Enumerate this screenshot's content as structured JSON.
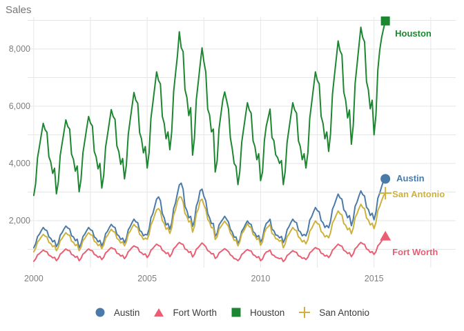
{
  "title": "Sales",
  "colors": {
    "grid": "#e6e6e6",
    "tick_label": "#7e7e7e",
    "title_text": "#757575",
    "legend_text": "#3b3b3b"
  },
  "chart_data": {
    "type": "line",
    "title": "Sales",
    "xlabel": "",
    "ylabel": "Sales",
    "x_unit": "month",
    "x_start": "2000-01",
    "x_end": "2015-07",
    "grid": true,
    "legend_position": "bottom",
    "x_ticks": [
      2000,
      2005,
      2010,
      2015
    ],
    "x_tick_labels": [
      "2000",
      "2005",
      "2010",
      "2015"
    ],
    "x_minor_ticks": [
      2002.5,
      2007.5,
      2012.5,
      2017.5
    ],
    "y_ticks": [
      2000,
      4000,
      6000,
      8000
    ],
    "y_tick_labels": [
      "2,000",
      "4,000",
      "6,000",
      "8,000"
    ],
    "y_minor_ticks": [
      1000,
      3000,
      5000,
      7000,
      9000
    ],
    "xlim": [
      1999.73,
      2018.6
    ],
    "ylim": [
      360,
      9230
    ],
    "series": [
      {
        "name": "Austin",
        "color": "#4a7aa8",
        "marker": "circle",
        "values": [
          1050,
          1190,
          1440,
          1530,
          1650,
          1760,
          1680,
          1650,
          1430,
          1380,
          1260,
          1310,
          1090,
          1220,
          1490,
          1580,
          1710,
          1810,
          1740,
          1710,
          1470,
          1430,
          1300,
          1350,
          1050,
          1190,
          1440,
          1530,
          1650,
          1760,
          1680,
          1650,
          1430,
          1380,
          1260,
          1310,
          1120,
          1260,
          1540,
          1630,
          1760,
          1870,
          1790,
          1760,
          1520,
          1470,
          1340,
          1390,
          1230,
          1380,
          1680,
          1790,
          1930,
          2050,
          1960,
          1930,
          1660,
          1610,
          1470,
          1520,
          1500,
          1700,
          2100,
          2250,
          2500,
          2750,
          2830,
          2700,
          2250,
          2100,
          1850,
          1900,
          1700,
          1920,
          2420,
          2620,
          2950,
          3250,
          3310,
          3100,
          2500,
          2350,
          2100,
          2150,
          1800,
          2000,
          2500,
          2700,
          3050,
          3100,
          2850,
          2700,
          2250,
          2100,
          1900,
          1900,
          1450,
          1560,
          1850,
          1950,
          2050,
          2150,
          2050,
          1950,
          1700,
          1600,
          1420,
          1430,
          1190,
          1340,
          1630,
          1730,
          1870,
          1990,
          1900,
          1870,
          1620,
          1560,
          1430,
          1480,
          1250,
          1380,
          1720,
          1900,
          1960,
          2050,
          1700,
          1650,
          1500,
          1480,
          1400,
          1450,
          1230,
          1380,
          1680,
          1790,
          1930,
          2050,
          1960,
          1930,
          1660,
          1610,
          1470,
          1520,
          1470,
          1660,
          2020,
          2140,
          2310,
          2460,
          2350,
          2310,
          2000,
          1930,
          1760,
          1830,
          1750,
          1980,
          2400,
          2550,
          2750,
          2930,
          2800,
          2750,
          2380,
          2300,
          2100,
          2180,
          1820,
          2050,
          2500,
          2650,
          2860,
          3040,
          2910,
          2860,
          2470,
          2390,
          2180,
          2260,
          2030,
          2290,
          2780,
          2960,
          3190,
          3390,
          3460
        ]
      },
      {
        "name": "Fort Worth",
        "color": "#e95e72",
        "marker": "triangle",
        "values": [
          580,
          660,
          800,
          850,
          910,
          970,
          930,
          910,
          790,
          760,
          700,
          720,
          600,
          680,
          830,
          880,
          950,
          1010,
          960,
          950,
          820,
          790,
          720,
          750,
          600,
          680,
          830,
          880,
          950,
          1010,
          960,
          950,
          820,
          790,
          720,
          750,
          640,
          720,
          870,
          930,
          1000,
          1060,
          1020,
          1000,
          860,
          840,
          760,
          790,
          670,
          760,
          920,
          980,
          1060,
          1120,
          1080,
          1060,
          910,
          880,
          810,
          840,
          710,
          800,
          970,
          1030,
          1110,
          1180,
          1130,
          1110,
          960,
          930,
          850,
          880,
          740,
          840,
          1020,
          1080,
          1170,
          1240,
          1190,
          1170,
          1010,
          980,
          890,
          920,
          730,
          820,
          1000,
          1060,
          1140,
          1220,
          1160,
          1090,
          950,
          920,
          840,
          850,
          680,
          730,
          870,
          920,
          970,
          1020,
          970,
          920,
          800,
          760,
          670,
          660,
          600,
          670,
          820,
          870,
          940,
          990,
          950,
          940,
          810,
          780,
          710,
          740,
          600,
          660,
          820,
          900,
          930,
          970,
          810,
          790,
          720,
          700,
          670,
          690,
          570,
          640,
          780,
          830,
          890,
          950,
          910,
          890,
          770,
          750,
          680,
          700,
          640,
          720,
          870,
          930,
          1000,
          1060,
          1020,
          1000,
          860,
          840,
          760,
          790,
          710,
          800,
          970,
          1030,
          1110,
          1180,
          1130,
          1110,
          960,
          930,
          850,
          880,
          740,
          840,
          1020,
          1080,
          1170,
          1240,
          1190,
          1170,
          1010,
          980,
          890,
          920,
          820,
          920,
          1120,
          1190,
          1290,
          1370,
          1450
        ]
      },
      {
        "name": "Houston",
        "color": "#1d8630",
        "marker": "square",
        "values": [
          2880,
          3290,
          4190,
          4590,
          5000,
          5400,
          5180,
          5090,
          4230,
          4050,
          3650,
          3830,
          2940,
          3360,
          4280,
          4690,
          5110,
          5520,
          5290,
          5200,
          4320,
          4140,
          3730,
          3910,
          3010,
          3430,
          4370,
          4790,
          5220,
          5640,
          5410,
          5310,
          4420,
          4230,
          3810,
          4000,
          3140,
          3580,
          4560,
          5000,
          5440,
          5880,
          5640,
          5540,
          4610,
          4410,
          3970,
          4170,
          3460,
          3940,
          5020,
          5510,
          5990,
          6480,
          6210,
          6100,
          5080,
          4860,
          4370,
          4590,
          3840,
          4380,
          5580,
          6120,
          6660,
          7200,
          6900,
          6780,
          5640,
          5400,
          4860,
          5100,
          4480,
          5110,
          6510,
          7140,
          7770,
          8600,
          8050,
          7910,
          6580,
          6300,
          5670,
          5950,
          4290,
          4890,
          6230,
          6830,
          7440,
          8040,
          7550,
          7200,
          5900,
          5700,
          5100,
          5200,
          3700,
          4100,
          5210,
          5710,
          6220,
          6500,
          6200,
          5900,
          4900,
          4500,
          4000,
          3900,
          3260,
          3720,
          4740,
          5200,
          5660,
          6120,
          5870,
          5760,
          4790,
          4590,
          4130,
          4340,
          3400,
          3700,
          4800,
          5300,
          5600,
          5900,
          4900,
          4800,
          4300,
          4200,
          4000,
          4100,
          3260,
          3720,
          4740,
          5200,
          5660,
          6120,
          5870,
          5760,
          4790,
          4590,
          4130,
          4340,
          3840,
          4380,
          5580,
          6120,
          6660,
          7200,
          6900,
          6780,
          5640,
          5400,
          4860,
          5100,
          4420,
          5040,
          6420,
          7040,
          7660,
          8280,
          7940,
          7800,
          6490,
          6210,
          5590,
          5870,
          4670,
          5330,
          6790,
          7450,
          8100,
          8760,
          8400,
          8250,
          6860,
          6570,
          5910,
          6210,
          5000,
          5700,
          7260,
          7950,
          8400,
          8700,
          8980
        ]
      },
      {
        "name": "San Antonio",
        "color": "#ccb23c",
        "marker": "plus",
        "values": [
          910,
          1030,
          1250,
          1330,
          1430,
          1520,
          1460,
          1430,
          1240,
          1200,
          1090,
          1130,
          950,
          1070,
          1300,
          1380,
          1490,
          1580,
          1510,
          1490,
          1280,
          1240,
          1130,
          1170,
          950,
          1070,
          1300,
          1380,
          1490,
          1580,
          1510,
          1490,
          1280,
          1240,
          1130,
          1170,
          1020,
          1150,
          1390,
          1480,
          1600,
          1700,
          1620,
          1600,
          1380,
          1330,
          1220,
          1260,
          1120,
          1260,
          1540,
          1630,
          1760,
          1870,
          1790,
          1760,
          1520,
          1470,
          1340,
          1390,
          1350,
          1520,
          1850,
          2000,
          2200,
          2380,
          2420,
          2330,
          2000,
          1900,
          1700,
          1750,
          1550,
          1750,
          2200,
          2380,
          2680,
          2830,
          2820,
          2650,
          2250,
          2150,
          1950,
          2000,
          1600,
          1800,
          2250,
          2400,
          2700,
          2750,
          2550,
          2400,
          2050,
          1950,
          1750,
          1750,
          1340,
          1440,
          1700,
          1790,
          1890,
          1980,
          1890,
          1800,
          1570,
          1470,
          1310,
          1320,
          1120,
          1260,
          1540,
          1630,
          1760,
          1900,
          1790,
          1760,
          1520,
          1470,
          1340,
          1390,
          1140,
          1260,
          1570,
          1730,
          1790,
          1870,
          1550,
          1510,
          1370,
          1350,
          1280,
          1320,
          1050,
          1190,
          1440,
          1530,
          1650,
          1760,
          1680,
          1650,
          1430,
          1380,
          1260,
          1310,
          1190,
          1340,
          1630,
          1730,
          1870,
          1990,
          1900,
          1870,
          1620,
          1560,
          1430,
          1480,
          1400,
          1580,
          1920,
          2040,
          2200,
          2340,
          2240,
          2200,
          1900,
          1840,
          1680,
          1740,
          1540,
          1740,
          2110,
          2240,
          2420,
          2570,
          2460,
          2420,
          2090,
          2020,
          1850,
          1910,
          1720,
          1940,
          2350,
          2500,
          2700,
          2870,
          2960
        ]
      }
    ]
  },
  "legend": {
    "items": [
      {
        "label": "Austin"
      },
      {
        "label": "Fort Worth"
      },
      {
        "label": "Houston"
      },
      {
        "label": "San Antonio"
      }
    ]
  }
}
